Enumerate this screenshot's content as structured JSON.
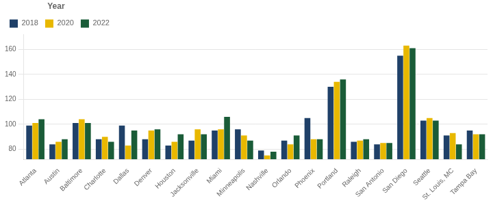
{
  "chart_data": {
    "type": "bar",
    "categories": [
      "Atlanta",
      "Austin",
      "Baltimore",
      "Charlotte",
      "Dallas",
      "Denver",
      "Houston",
      "Jacksonville",
      "Miami",
      "Minneapolis",
      "Nashville",
      "Orlando",
      "Phoenix",
      "Portland",
      "Raleigh",
      "San Antonio",
      "San Diego",
      "Seattle",
      "St. Louis, MC",
      "Tampa Bay"
    ],
    "series": [
      {
        "name": "2018",
        "color": "#1f4068",
        "values": [
          99,
          84,
          101,
          88,
          99,
          88,
          83,
          87,
          95,
          96,
          79,
          87,
          105,
          130,
          86,
          84,
          155,
          103,
          91,
          95
        ]
      },
      {
        "name": "2020",
        "color": "#e8b800",
        "values": [
          101,
          86,
          104,
          90,
          83,
          95,
          86,
          96,
          96,
          91,
          75,
          84,
          88,
          134,
          87,
          85,
          163,
          105,
          93,
          92
        ]
      },
      {
        "name": "2022",
        "color": "#1a5c38",
        "values": [
          104,
          88,
          101,
          86,
          95,
          96,
          92,
          92,
          106,
          87,
          78,
          91,
          88,
          136,
          88,
          85,
          161,
          103,
          84,
          92
        ]
      }
    ],
    "legend_title": "Year",
    "legend": "upper left",
    "ylim": [
      72,
      172
    ],
    "yticks": [
      80,
      100,
      120,
      140,
      160
    ],
    "grid": true
  }
}
